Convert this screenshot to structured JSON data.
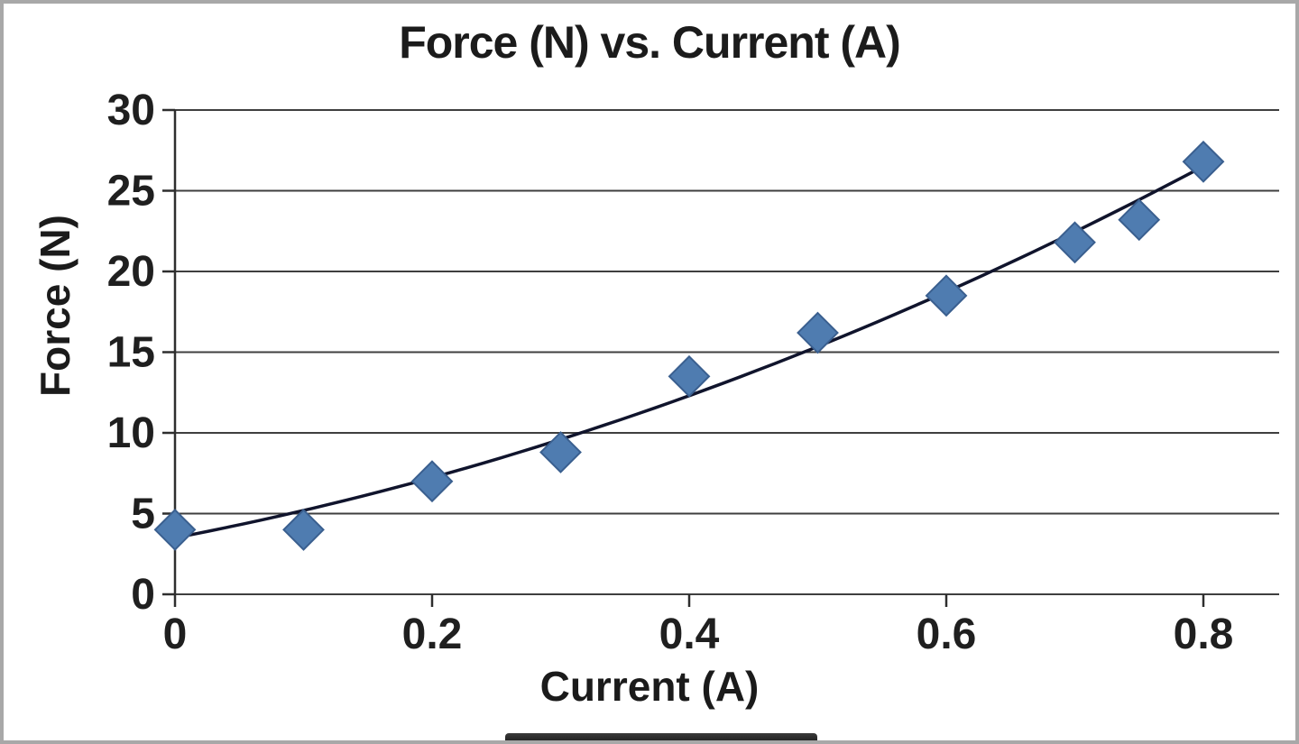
{
  "chart_data": {
    "type": "scatter",
    "title": "Force (N) vs. Current (A)",
    "xlabel": "Current (A)",
    "ylabel": "Force (N)",
    "xlim": [
      0,
      0.8
    ],
    "ylim": [
      0,
      30
    ],
    "x_ticks": [
      0,
      0.2,
      0.4,
      0.6,
      0.8
    ],
    "y_ticks": [
      0,
      5,
      10,
      15,
      20,
      25,
      30
    ],
    "grid": "horizontal",
    "legend": "none",
    "points": [
      {
        "x": 0.0,
        "y": 4.0
      },
      {
        "x": 0.1,
        "y": 4.0
      },
      {
        "x": 0.2,
        "y": 7.0
      },
      {
        "x": 0.3,
        "y": 8.8
      },
      {
        "x": 0.4,
        "y": 13.5
      },
      {
        "x": 0.5,
        "y": 16.2
      },
      {
        "x": 0.6,
        "y": 18.5
      },
      {
        "x": 0.7,
        "y": 21.8
      },
      {
        "x": 0.75,
        "y": 23.2
      },
      {
        "x": 0.8,
        "y": 26.8
      }
    ],
    "trendline": {
      "type": "polynomial",
      "order": 2,
      "coefficients": [
        16.9,
        15.25,
        3.5
      ],
      "x_range": [
        0,
        0.8
      ]
    },
    "marker": {
      "shape": "diamond",
      "color": "#4f7cb0",
      "border_color": "#3a5f8f"
    },
    "trendline_color": "#10142c",
    "gridline_color": "#3f3f3f",
    "axis_color": "#2e2e2e",
    "text_color": "#1f1f1f"
  }
}
